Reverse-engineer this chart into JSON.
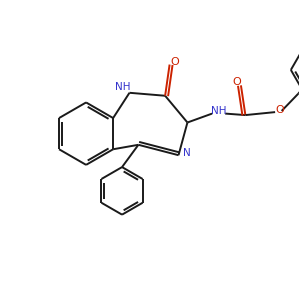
{
  "background_color": "#ffffff",
  "bond_color": "#1a1a1a",
  "nitrogen_color": "#3333cc",
  "oxygen_color": "#cc2200",
  "line_width": 1.4,
  "figsize": [
    3.0,
    3.0
  ],
  "dpi": 100,
  "xlim": [
    0,
    10
  ],
  "ylim": [
    0,
    10
  ]
}
